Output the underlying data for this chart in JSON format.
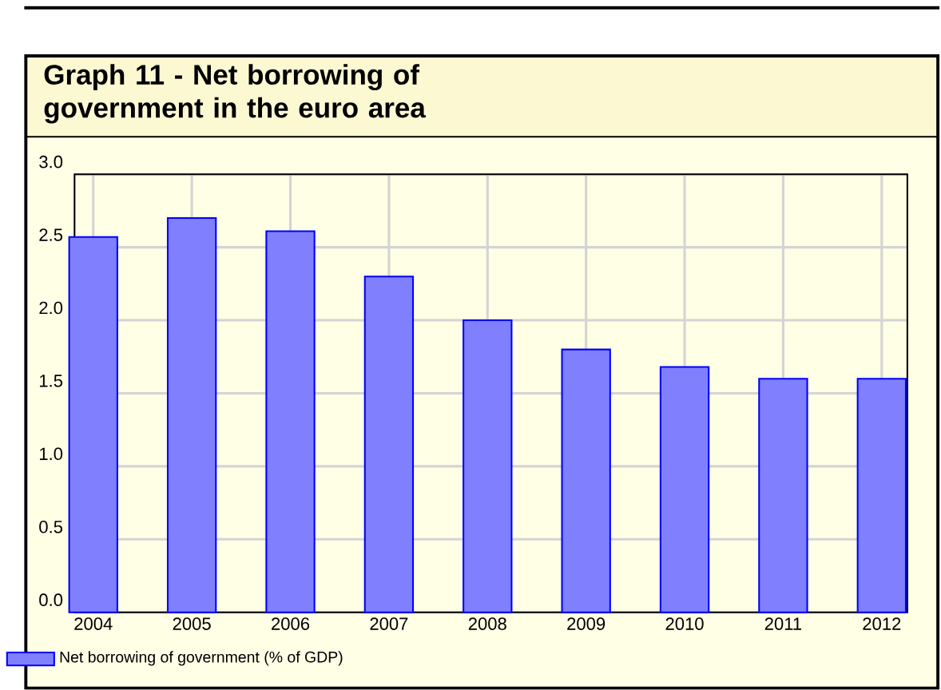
{
  "chart_data": {
    "type": "bar",
    "title": "Graph 11 - Net borrowing of government in the euro area",
    "categories": [
      "2004",
      "2005",
      "2006",
      "2007",
      "2008",
      "2009",
      "2010",
      "2011",
      "2012"
    ],
    "series": [
      {
        "name": "Net borrowing of government (% of GDP)",
        "color": "#8080ff",
        "values": [
          2.57,
          2.7,
          2.61,
          2.3,
          2.0,
          1.8,
          1.68,
          1.6,
          1.6
        ]
      }
    ],
    "ylim": [
      0,
      3
    ],
    "yticks": [
      {
        "value": 0,
        "label": "0.0"
      },
      {
        "value": 0.5,
        "label": "0.5"
      },
      {
        "value": 1,
        "label": "1.0"
      },
      {
        "value": 1.5,
        "label": "1.5"
      },
      {
        "value": 2,
        "label": "2.0"
      },
      {
        "value": 2.5,
        "label": "2.5"
      },
      {
        "value": 3,
        "label": "3.0"
      }
    ],
    "grid": true,
    "legend": "bottom left"
  }
}
